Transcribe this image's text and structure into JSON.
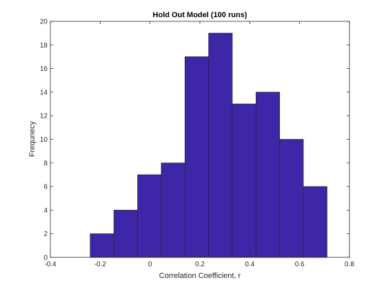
{
  "chart_data": {
    "type": "bar",
    "title": "Hold Out Model (100 runs)",
    "xlabel": "Correlation Coefficient, r",
    "ylabel": "Frequnecy",
    "xlim": [
      -0.4,
      0.8
    ],
    "ylim": [
      0,
      20
    ],
    "xticks": [
      "-0.4",
      "-0.2",
      "0",
      "0.2",
      "0.4",
      "0.6",
      "0.8"
    ],
    "yticks": [
      "0",
      "2",
      "4",
      "6",
      "8",
      "10",
      "12",
      "14",
      "16",
      "18",
      "20"
    ],
    "bins": [
      {
        "start": -0.24,
        "end": -0.145,
        "count": 2
      },
      {
        "start": -0.145,
        "end": -0.05,
        "count": 4
      },
      {
        "start": -0.05,
        "end": 0.045,
        "count": 7
      },
      {
        "start": 0.045,
        "end": 0.14,
        "count": 8
      },
      {
        "start": 0.14,
        "end": 0.235,
        "count": 17
      },
      {
        "start": 0.235,
        "end": 0.33,
        "count": 19
      },
      {
        "start": 0.33,
        "end": 0.425,
        "count": 13
      },
      {
        "start": 0.425,
        "end": 0.52,
        "count": 14
      },
      {
        "start": 0.52,
        "end": 0.615,
        "count": 10
      },
      {
        "start": 0.615,
        "end": 0.71,
        "count": 6
      }
    ],
    "bar_color": "#3e26a8",
    "edge_color": "#262626",
    "grid": false
  }
}
